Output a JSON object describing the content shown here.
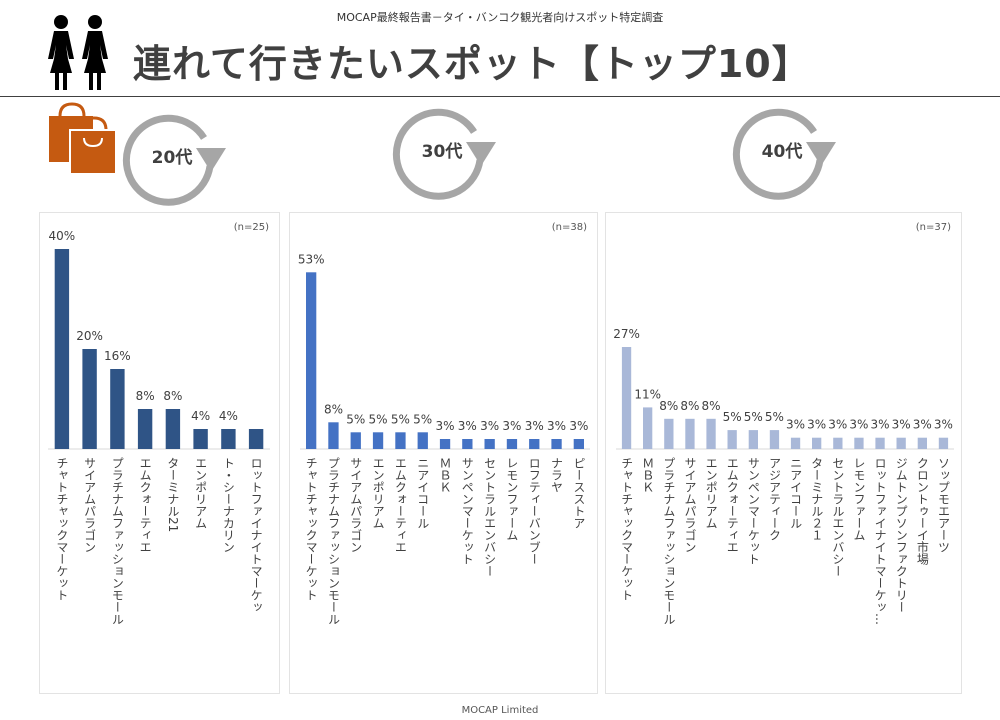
{
  "header": {
    "subtitle": "MOCAP最終報告書－タイ・バンコク観光者向けスポット特定調査",
    "title": "連れて行きたいスポット【トップ10】"
  },
  "footer": {
    "text": "MOCAP Limited"
  },
  "icons": {
    "people": "couple-icon",
    "bags": "shopping-bags-icon",
    "cycle": "circular-arrow-icon"
  },
  "colors": {
    "age20": "#2f5486",
    "age30": "#4472c4",
    "age40": "#a9b8d8",
    "bag": "#c55a11",
    "cycle": "#a6a6a6"
  },
  "chart_data": [
    {
      "type": "bar",
      "panel_label": "20代",
      "n_label": "(n=25)",
      "categories": [
        "チャトチャックマーケット",
        "サイアムパラゴン",
        "プラチナムファッションモール",
        "エムクォーティエ",
        "ターミナル21",
        "エンポリアム",
        "ト・シーナカリン",
        "ロットファイナイトマーケッ"
      ],
      "values": [
        40,
        20,
        16,
        8,
        8,
        4,
        4,
        4
      ],
      "value_labels": [
        "40%",
        "20%",
        "16%",
        "8%",
        "8%",
        "4%",
        "4%",
        ""
      ],
      "ylim": [
        0,
        45
      ]
    },
    {
      "type": "bar",
      "panel_label": "30代",
      "n_label": "(n=38)",
      "categories": [
        "チャトチャックマーケット",
        "プラチナムファッションモール",
        "サイアムパラゴン",
        "エンポリアム",
        "エムクォーティエ",
        "ニアイコール",
        "ＭＢＫ",
        "サンペンマーケット",
        "セントラルエンバシー",
        "レモンファーム",
        "ロフティーバンブー",
        "ナラヤ",
        "ピースストア"
      ],
      "values": [
        53,
        8,
        5,
        5,
        5,
        5,
        3,
        3,
        3,
        3,
        3,
        3,
        3
      ],
      "value_labels": [
        "53%",
        "8%",
        "5%",
        "5%",
        "5%",
        "5%",
        "3%",
        "3%",
        "3%",
        "3%",
        "3%",
        "3%",
        "3%"
      ],
      "ylim": [
        0,
        60
      ]
    },
    {
      "type": "bar",
      "panel_label": "40代",
      "n_label": "(n=37)",
      "categories": [
        "チャトチャックマーケット",
        "ＭＢＫ",
        "プラチナムファッションモール",
        "サイアムパラゴン",
        "エンポリアム",
        "エムクォーティエ",
        "サンペンマーケット",
        "アジアティーク",
        "ニアイコール",
        "ターミナル２１",
        "セントラルエンバシー",
        "レモンファーム",
        "ロットファイナイトマーケッ…",
        "ジムトンプソンファクトリー",
        "クロントゥーイ市場",
        "ソップモエアーツ"
      ],
      "values": [
        27,
        11,
        8,
        8,
        8,
        5,
        5,
        5,
        3,
        3,
        3,
        3,
        3,
        3,
        3,
        3
      ],
      "value_labels": [
        "27%",
        "11%",
        "8%",
        "8%",
        "8%",
        "5%",
        "5%",
        "5%",
        "3%",
        "3%",
        "3%",
        "3%",
        "3%",
        "3%",
        "3%",
        "3%"
      ],
      "ylim": [
        0,
        45
      ]
    }
  ]
}
